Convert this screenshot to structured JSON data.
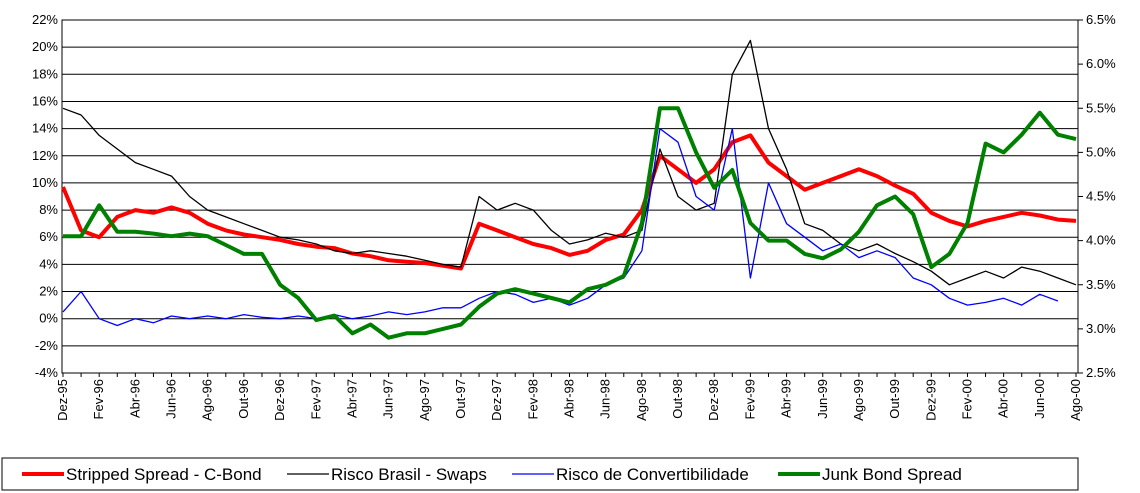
{
  "chart_data": {
    "type": "line",
    "categories": [
      "Dez-95",
      null,
      "Fev-96",
      null,
      "Abr-96",
      null,
      "Jun-96",
      null,
      "Ago-96",
      null,
      "Out-96",
      null,
      "Dez-96",
      null,
      "Fev-97",
      null,
      "Abr-97",
      null,
      "Jun-97",
      null,
      "Ago-97",
      null,
      "Out-97",
      null,
      "Dez-97",
      null,
      "Fev-98",
      null,
      "Abr-98",
      null,
      "Jun-98",
      null,
      "Ago-98",
      null,
      "Out-98",
      null,
      "Dez-98",
      null,
      "Fev-99",
      null,
      "Abr-99",
      null,
      "Jun-99",
      null,
      "Ago-99",
      null,
      "Out-99",
      null,
      "Dez-99",
      null,
      "Fev-00",
      null,
      "Abr-00",
      null,
      "Jun-00",
      null,
      "Ago-00"
    ],
    "series": [
      {
        "name": "Stripped Spread - C-Bond",
        "color": "#ff0000",
        "values": [
          9.7,
          6.5,
          6.0,
          7.5,
          8.0,
          7.8,
          8.2,
          7.8,
          7.0,
          6.5,
          6.2,
          6.0,
          5.8,
          5.5,
          5.3,
          5.2,
          4.8,
          4.6,
          4.3,
          4.2,
          4.1,
          3.9,
          3.7,
          7.0,
          6.5,
          6.0,
          5.5,
          5.2,
          4.7,
          5.0,
          5.8,
          6.2,
          8.0,
          12.0,
          11.0,
          10.0,
          11.0,
          13.0,
          13.5,
          11.5,
          10.5,
          9.5,
          10.0,
          10.5,
          11.0,
          10.5,
          9.8,
          9.2,
          7.8,
          7.2,
          6.8,
          7.2,
          7.5,
          7.8,
          7.6,
          7.3,
          7.2
        ]
      },
      {
        "name": "Risco Brasil - Swaps",
        "color": "#000000",
        "values": [
          15.5,
          15.0,
          13.5,
          12.5,
          11.5,
          11.0,
          10.5,
          9.0,
          8.0,
          7.5,
          7.0,
          6.5,
          6.0,
          5.8,
          5.5,
          5.0,
          4.8,
          5.0,
          4.8,
          4.6,
          4.3,
          4.0,
          3.8,
          9.0,
          8.0,
          8.5,
          8.0,
          6.5,
          5.5,
          5.8,
          6.3,
          6.0,
          6.5,
          12.5,
          9.0,
          8.0,
          8.5,
          18.0,
          20.5,
          14.0,
          11.0,
          7.0,
          6.5,
          5.5,
          5.0,
          5.5,
          4.8,
          4.2,
          3.5,
          2.5,
          3.0,
          3.5,
          3.0,
          3.8,
          3.5,
          3.0,
          2.5
        ]
      },
      {
        "name": "Risco de Convertibilidade",
        "color": "#0000ff",
        "values": [
          0.5,
          2.0,
          0.0,
          -0.5,
          0.0,
          -0.3,
          0.2,
          0.0,
          0.2,
          0.0,
          0.3,
          0.1,
          0.0,
          0.2,
          0.0,
          0.3,
          0.0,
          0.2,
          0.5,
          0.3,
          0.5,
          0.8,
          0.8,
          1.5,
          2.0,
          1.8,
          1.2,
          1.5,
          1.0,
          1.5,
          2.5,
          3.0,
          5.0,
          14.0,
          13.0,
          9.0,
          8.0,
          14.0,
          3.0,
          10.0,
          7.0,
          6.0,
          5.0,
          5.5,
          4.5,
          5.0,
          4.5,
          3.0,
          2.5,
          1.5,
          1.0,
          1.2,
          1.5,
          1.0,
          1.8,
          1.3,
          null
        ]
      },
      {
        "name": "Junk Bond Spread",
        "color": "#008000",
        "axis": "y2",
        "values": [
          4.05,
          4.05,
          4.4,
          4.1,
          4.1,
          4.08,
          4.05,
          4.08,
          4.05,
          3.95,
          3.85,
          3.85,
          3.5,
          3.35,
          3.1,
          3.15,
          2.95,
          3.05,
          2.9,
          2.95,
          2.95,
          3.0,
          3.05,
          3.25,
          3.4,
          3.45,
          3.4,
          3.35,
          3.3,
          3.45,
          3.5,
          3.6,
          4.2,
          5.5,
          5.5,
          5.0,
          4.6,
          4.8,
          4.2,
          4.0,
          4.0,
          3.85,
          3.8,
          3.9,
          4.1,
          4.4,
          4.5,
          4.3,
          3.7,
          3.85,
          4.2,
          5.1,
          5.0,
          5.2,
          5.45,
          5.2,
          5.15
        ]
      }
    ],
    "ylim": [
      -4,
      22
    ],
    "yticks": [
      {
        "value": -4,
        "label": "-4%"
      },
      {
        "value": -2,
        "label": "-2%"
      },
      {
        "value": 0,
        "label": "0%"
      },
      {
        "value": 2,
        "label": "2%"
      },
      {
        "value": 4,
        "label": "4%"
      },
      {
        "value": 6,
        "label": "6%"
      },
      {
        "value": 8,
        "label": "8%"
      },
      {
        "value": 10,
        "label": "10%"
      },
      {
        "value": 12,
        "label": "12%"
      },
      {
        "value": 14,
        "label": "14%"
      },
      {
        "value": 16,
        "label": "16%"
      },
      {
        "value": 18,
        "label": "18%"
      },
      {
        "value": 20,
        "label": "20%"
      },
      {
        "value": 22,
        "label": "22%"
      }
    ],
    "y2lim": [
      2.5,
      6.5
    ],
    "y2ticks": [
      {
        "value": 2.5,
        "label": "2.5%"
      },
      {
        "value": 3,
        "label": "3.0%"
      },
      {
        "value": 3.5,
        "label": "3.5%"
      },
      {
        "value": 4,
        "label": "4.0%"
      },
      {
        "value": 4.5,
        "label": "4.5%"
      },
      {
        "value": 5,
        "label": "5.0%"
      },
      {
        "value": 5.5,
        "label": "5.5%"
      },
      {
        "value": 6,
        "label": "6.0%"
      },
      {
        "value": 6.5,
        "label": "6.5%"
      }
    ],
    "grid": true,
    "legend": "bottom"
  }
}
